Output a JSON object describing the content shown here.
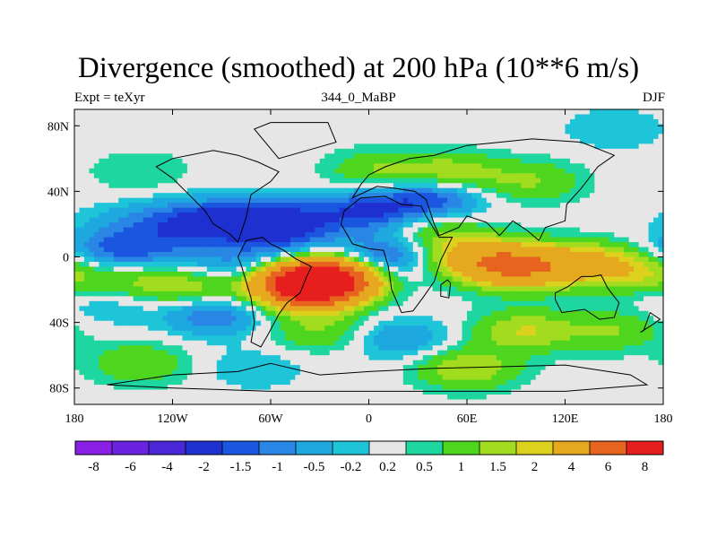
{
  "title": "Divergence (smoothed) at 200 hPa (10**6 m/s)",
  "subtitle_left": "Expt = teXyr",
  "subtitle_center": "344_0_MaBP",
  "subtitle_right": "DJF",
  "colors": {
    "land_outline": "#000000",
    "neutral_band": "#e6e6e6"
  },
  "chart_data": {
    "type": "heatmap",
    "variable": "divergence (smoothed)",
    "level": "200 hPa",
    "units": "10**6 m/s",
    "xlim": [
      -180,
      180
    ],
    "ylim": [
      -90,
      90
    ],
    "x_ticks": [
      {
        "value": -180,
        "label": "180"
      },
      {
        "value": -120,
        "label": "120W"
      },
      {
        "value": -60,
        "label": "60W"
      },
      {
        "value": 0,
        "label": "0"
      },
      {
        "value": 60,
        "label": "60E"
      },
      {
        "value": 120,
        "label": "120E"
      },
      {
        "value": 180,
        "label": "180"
      }
    ],
    "y_ticks": [
      {
        "value": 80,
        "label": "80N"
      },
      {
        "value": 40,
        "label": "40N"
      },
      {
        "value": 0,
        "label": "0"
      },
      {
        "value": -40,
        "label": "40S"
      },
      {
        "value": -80,
        "label": "80S"
      }
    ],
    "contour_levels": [
      -8,
      -6,
      -4,
      -2,
      -1.5,
      -1,
      -0.5,
      -0.2,
      0.2,
      0.5,
      1,
      1.5,
      2,
      4,
      6,
      8
    ],
    "colorbar_labels": [
      "-8",
      "-6",
      "-4",
      "-2",
      "-1.5",
      "-1",
      "-0.5",
      "-0.2",
      "0.2",
      "0.5",
      "1",
      "1.5",
      "2",
      "4",
      "6",
      "8"
    ],
    "colorbar_colors": [
      "#8a1fe6",
      "#6a24e0",
      "#4a28d8",
      "#1f30d0",
      "#1a56e0",
      "#2a86e4",
      "#1ea8e0",
      "#1ec4d8",
      "#e6e6e6",
      "#1ed6a0",
      "#4ed61e",
      "#a2dc1e",
      "#dcd21e",
      "#e6a81e",
      "#e6641e",
      "#e61e1e"
    ],
    "features": [
      {
        "lon": -150,
        "lat": 20,
        "value": -0.5
      },
      {
        "lon": -120,
        "lat": 22,
        "value": -1
      },
      {
        "lon": -90,
        "lat": 22,
        "value": -2
      },
      {
        "lon": -50,
        "lat": 22,
        "value": -2
      },
      {
        "lon": 0,
        "lat": 28,
        "value": -2
      },
      {
        "lon": 40,
        "lat": 36,
        "value": -2
      },
      {
        "lon": 10,
        "lat": 0,
        "value": -2
      },
      {
        "lon": -160,
        "lat": 2,
        "value": -1.5
      },
      {
        "lon": -130,
        "lat": 5,
        "value": -1
      },
      {
        "lon": -35,
        "lat": -4,
        "value": -1
      },
      {
        "lon": -85,
        "lat": -6,
        "value": -1
      },
      {
        "lon": -25,
        "lat": -10,
        "value": 4
      },
      {
        "lon": -38,
        "lat": -18,
        "value": 6
      },
      {
        "lon": -30,
        "lat": -16,
        "value": 3
      },
      {
        "lon": 90,
        "lat": -6,
        "value": 4
      },
      {
        "lon": 130,
        "lat": -4,
        "value": 2
      },
      {
        "lon": 165,
        "lat": -8,
        "value": 1.5
      },
      {
        "lon": 60,
        "lat": 0,
        "value": 2
      },
      {
        "lon": -150,
        "lat": -12,
        "value": 1
      },
      {
        "lon": -110,
        "lat": -18,
        "value": 1.5
      },
      {
        "lon": 5,
        "lat": 52,
        "value": 1
      },
      {
        "lon": 50,
        "lat": 50,
        "value": 1.5
      },
      {
        "lon": 100,
        "lat": 46,
        "value": 1
      },
      {
        "lon": -140,
        "lat": 52,
        "value": 0.5
      },
      {
        "lon": 40,
        "lat": 16,
        "value": 1
      },
      {
        "lon": -60,
        "lat": 10,
        "value": -1
      },
      {
        "lon": -160,
        "lat": -30,
        "value": -0.5
      },
      {
        "lon": -95,
        "lat": -35,
        "value": -1.5
      },
      {
        "lon": 20,
        "lat": -50,
        "value": -1
      },
      {
        "lon": 95,
        "lat": -45,
        "value": 1.5
      },
      {
        "lon": 150,
        "lat": -45,
        "value": 1
      },
      {
        "lon": -140,
        "lat": -65,
        "value": 1
      },
      {
        "lon": -70,
        "lat": -68,
        "value": -0.5
      },
      {
        "lon": 60,
        "lat": -68,
        "value": 1.5
      },
      {
        "lon": 150,
        "lat": 78,
        "value": -0.5
      },
      {
        "lon": -30,
        "lat": -45,
        "value": 1
      }
    ]
  }
}
